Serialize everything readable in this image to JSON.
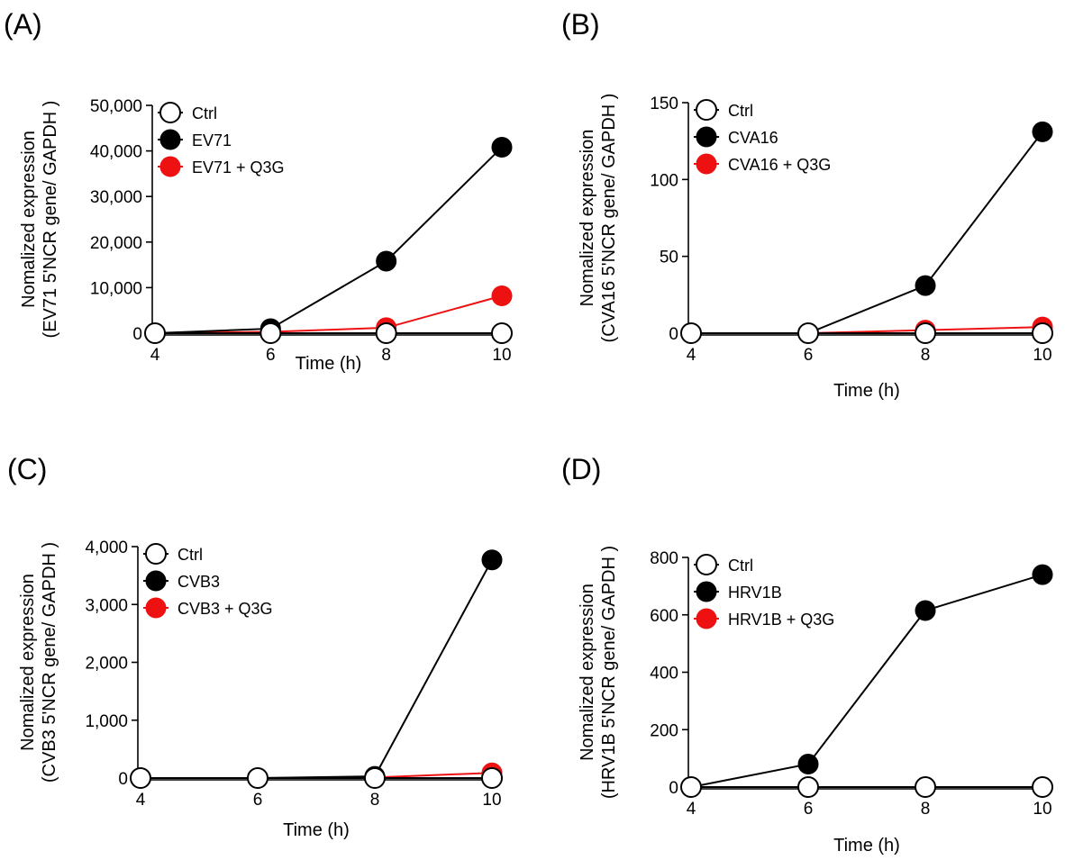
{
  "chart_data": [
    {
      "type": "line",
      "panel_label": "(A)",
      "xlabel": "Time (h)",
      "ylabel_line1": "Nomalized expression",
      "ylabel_line2": "(EV71 5'NCR gene/ GAPDH )",
      "x": [
        4,
        6,
        8,
        10
      ],
      "xticks": [
        "4",
        "6",
        "8",
        "10"
      ],
      "ylim": [
        0,
        50000
      ],
      "yticks": [
        0,
        10000,
        20000,
        30000,
        40000,
        50000
      ],
      "ytick_labels": [
        "0",
        "10,000",
        "20,000",
        "30,000",
        "40,000",
        "50,000"
      ],
      "legend_position": "top-left",
      "series": [
        {
          "name": "Ctrl",
          "values": [
            0,
            0,
            0,
            0
          ],
          "marker": "open-circle",
          "color": "#000000"
        },
        {
          "name": "EV71",
          "values": [
            0,
            1000,
            15800,
            40800
          ],
          "marker": "filled-circle",
          "color": "#000000"
        },
        {
          "name": "EV71 + Q3G",
          "values": [
            0,
            300,
            1200,
            8200
          ],
          "marker": "filled-circle",
          "color": "#ee1111"
        }
      ]
    },
    {
      "type": "line",
      "panel_label": "(B)",
      "xlabel": "Time (h)",
      "ylabel_line1": "Nomalized expression",
      "ylabel_line2": "(CVA16 5'NCR gene/ GAPDH )",
      "x": [
        4,
        6,
        8,
        10
      ],
      "xticks": [
        "4",
        "6",
        "8",
        "10"
      ],
      "ylim": [
        0,
        150
      ],
      "yticks": [
        0,
        50,
        100,
        150
      ],
      "ytick_labels": [
        "0",
        "50",
        "100",
        "150"
      ],
      "legend_position": "top-left",
      "series": [
        {
          "name": "Ctrl",
          "values": [
            0,
            0,
            0,
            0
          ],
          "marker": "open-circle",
          "color": "#000000"
        },
        {
          "name": "CVA16",
          "values": [
            0,
            0,
            31,
            131
          ],
          "marker": "filled-circle",
          "color": "#000000"
        },
        {
          "name": "CVA16 + Q3G",
          "values": [
            0,
            0,
            2,
            4
          ],
          "marker": "filled-circle",
          "color": "#ee1111"
        }
      ]
    },
    {
      "type": "line",
      "panel_label": "(C)",
      "xlabel": "Time (h)",
      "ylabel_line1": "Nomalized expression",
      "ylabel_line2": "(CVB3 5'NCR gene/ GAPDH )",
      "x": [
        4,
        6,
        8,
        10
      ],
      "xticks": [
        "4",
        "6",
        "8",
        "10"
      ],
      "ylim": [
        0,
        4000
      ],
      "yticks": [
        0,
        1000,
        2000,
        3000,
        4000
      ],
      "ytick_labels": [
        "0",
        "1,000",
        "2,000",
        "3,000",
        "4,000"
      ],
      "legend_position": "top-left",
      "series": [
        {
          "name": "Ctrl",
          "values": [
            0,
            0,
            0,
            0
          ],
          "marker": "open-circle",
          "color": "#000000"
        },
        {
          "name": "CVB3",
          "values": [
            0,
            0,
            30,
            3770
          ],
          "marker": "filled-circle",
          "color": "#000000"
        },
        {
          "name": "CVB3 + Q3G",
          "values": [
            0,
            0,
            10,
            90
          ],
          "marker": "filled-circle",
          "color": "#ee1111"
        }
      ]
    },
    {
      "type": "line",
      "panel_label": "(D)",
      "xlabel": "Time (h)",
      "ylabel_line1": "Nomalized expression",
      "ylabel_line2": "(HRV1B 5'NCR gene/ GAPDH )",
      "x": [
        4,
        6,
        8,
        10
      ],
      "xticks": [
        "4",
        "6",
        "8",
        "10"
      ],
      "ylim": [
        0,
        800
      ],
      "yticks": [
        0,
        200,
        400,
        600,
        800
      ],
      "ytick_labels": [
        "0",
        "200",
        "400",
        "600",
        "800"
      ],
      "legend_position": "top-left",
      "series": [
        {
          "name": "Ctrl",
          "values": [
            0,
            0,
            0,
            0
          ],
          "marker": "open-circle",
          "color": "#000000"
        },
        {
          "name": "HRV1B",
          "values": [
            0,
            80,
            615,
            740
          ],
          "marker": "filled-circle",
          "color": "#000000"
        },
        {
          "name": "HRV1B + Q3G",
          "values": [
            0,
            0,
            0,
            0
          ],
          "marker": "filled-circle",
          "color": "#ee1111"
        }
      ]
    }
  ]
}
